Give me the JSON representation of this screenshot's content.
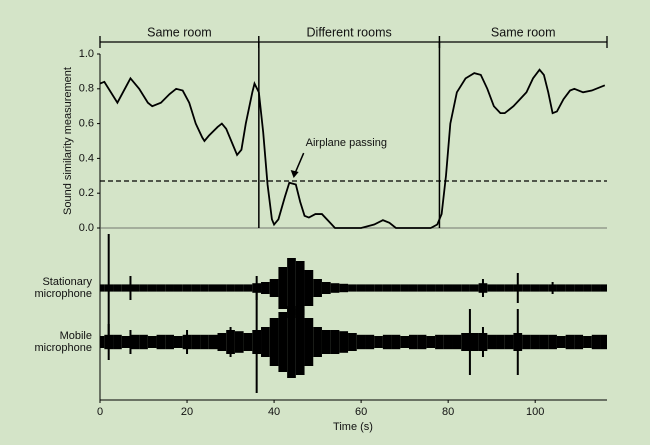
{
  "chart_data": {
    "type": "line",
    "ylabel": "Sound similarity measurement",
    "xlabel": "Time (s)",
    "xlim": [
      0,
      116.5
    ],
    "xticks": [
      0,
      20,
      40,
      60,
      80,
      100
    ],
    "ylim": [
      0,
      1
    ],
    "yticks": [
      {
        "value": 0,
        "label": "0.0"
      },
      0.2,
      0.4,
      0.6,
      0.8,
      {
        "value": 1,
        "label": "1.0"
      }
    ],
    "regions": [
      {
        "label": "Same room",
        "start": 0,
        "end": 36.5
      },
      {
        "label": "Different rooms",
        "start": 36.5,
        "end": 78
      },
      {
        "label": "Same room",
        "start": 78,
        "end": 116.5
      }
    ],
    "threshold": 0.27,
    "annotation": {
      "text": "Airplane passing",
      "x": 44.5,
      "y": 0.27
    },
    "series": [
      {
        "name": "Sound similarity",
        "color": "#000000",
        "x": [
          0,
          1,
          4,
          7,
          9,
          11,
          12,
          14,
          16,
          17.5,
          19,
          20.5,
          22,
          23.5,
          24,
          25,
          27,
          28,
          29,
          30.5,
          31.5,
          32.5,
          33.5,
          35,
          35.5,
          36.5,
          37.5,
          38.5,
          39.5,
          40,
          41,
          42.5,
          43.5,
          45,
          46,
          47,
          48,
          49.5,
          51,
          52.5,
          54,
          60,
          63,
          65,
          66.5,
          68,
          76,
          77.5,
          78.5,
          79.5,
          80.5,
          82,
          84,
          86,
          87.5,
          89,
          90.5,
          92,
          93,
          95,
          96.5,
          98,
          99.5,
          101,
          102,
          103,
          104,
          105,
          106.5,
          108,
          109,
          111,
          113,
          116
        ],
        "values": [
          0.83,
          0.84,
          0.72,
          0.86,
          0.8,
          0.72,
          0.7,
          0.72,
          0.77,
          0.8,
          0.79,
          0.72,
          0.6,
          0.52,
          0.5,
          0.53,
          0.58,
          0.6,
          0.57,
          0.48,
          0.42,
          0.45,
          0.6,
          0.78,
          0.83,
          0.78,
          0.55,
          0.25,
          0.05,
          0.02,
          0.05,
          0.18,
          0.26,
          0.25,
          0.15,
          0.07,
          0.06,
          0.08,
          0.08,
          0.04,
          0,
          0,
          0.02,
          0.045,
          0.03,
          0,
          0,
          0.02,
          0.08,
          0.3,
          0.6,
          0.78,
          0.86,
          0.89,
          0.88,
          0.8,
          0.7,
          0.66,
          0.66,
          0.7,
          0.74,
          0.78,
          0.86,
          0.91,
          0.88,
          0.78,
          0.66,
          0.67,
          0.74,
          0.79,
          0.8,
          0.78,
          0.79,
          0.82
        ]
      }
    ],
    "waveforms": [
      {
        "name": [
          "Stationary",
          "microphone"
        ],
        "x": [
          0,
          2,
          4,
          6,
          8,
          10,
          12,
          14,
          16,
          18,
          20,
          22,
          24,
          26,
          28,
          30,
          32,
          34,
          36,
          38,
          40,
          42,
          44,
          46,
          48,
          50,
          52,
          54,
          56,
          58,
          60,
          62,
          64,
          66,
          68,
          70,
          72,
          74,
          76,
          78,
          80,
          82,
          84,
          86,
          88,
          90,
          92,
          94,
          96,
          98,
          100,
          102,
          104,
          106,
          108,
          110,
          112,
          114,
          116
        ],
        "amplitude": [
          0.06,
          0.06,
          0.06,
          0.06,
          0.06,
          0.06,
          0.06,
          0.06,
          0.06,
          0.06,
          0.06,
          0.06,
          0.06,
          0.06,
          0.06,
          0.06,
          0.06,
          0.06,
          0.08,
          0.1,
          0.15,
          0.35,
          0.5,
          0.45,
          0.3,
          0.15,
          0.1,
          0.08,
          0.07,
          0.06,
          0.06,
          0.06,
          0.06,
          0.06,
          0.06,
          0.06,
          0.06,
          0.06,
          0.06,
          0.06,
          0.06,
          0.06,
          0.06,
          0.06,
          0.08,
          0.06,
          0.06,
          0.06,
          0.06,
          0.06,
          0.06,
          0.06,
          0.06,
          0.06,
          0.06,
          0.06,
          0.06,
          0.06,
          0.06
        ],
        "spikes": {
          "x": [
            2,
            7,
            36,
            88,
            96,
            104
          ],
          "amplitude": [
            0.9,
            0.2,
            0.2,
            0.15,
            0.25,
            0.1
          ]
        }
      },
      {
        "name": [
          "Mobile",
          "microphone"
        ],
        "x": [
          0,
          2,
          4,
          6,
          8,
          10,
          12,
          14,
          16,
          18,
          20,
          22,
          24,
          26,
          28,
          30,
          32,
          34,
          36,
          38,
          40,
          42,
          44,
          46,
          48,
          50,
          52,
          54,
          56,
          58,
          60,
          62,
          64,
          66,
          68,
          70,
          72,
          74,
          76,
          78,
          80,
          82,
          84,
          86,
          88,
          90,
          92,
          94,
          96,
          98,
          100,
          102,
          104,
          106,
          108,
          110,
          112,
          114,
          116
        ],
        "amplitude": [
          0.1,
          0.12,
          0.12,
          0.1,
          0.12,
          0.12,
          0.1,
          0.12,
          0.12,
          0.1,
          0.12,
          0.12,
          0.12,
          0.12,
          0.15,
          0.2,
          0.18,
          0.15,
          0.2,
          0.25,
          0.4,
          0.5,
          0.6,
          0.55,
          0.4,
          0.25,
          0.2,
          0.2,
          0.18,
          0.15,
          0.12,
          0.12,
          0.1,
          0.12,
          0.12,
          0.1,
          0.12,
          0.12,
          0.1,
          0.12,
          0.12,
          0.12,
          0.15,
          0.15,
          0.15,
          0.12,
          0.12,
          0.12,
          0.15,
          0.12,
          0.12,
          0.12,
          0.12,
          0.1,
          0.12,
          0.12,
          0.1,
          0.12,
          0.12
        ],
        "spikes": {
          "x": [
            2,
            7,
            20,
            30,
            36,
            85,
            88,
            96
          ],
          "amplitude": [
            0.3,
            0.2,
            0.2,
            0.25,
            0.85,
            0.55,
            0.25,
            0.55
          ]
        }
      }
    ]
  }
}
